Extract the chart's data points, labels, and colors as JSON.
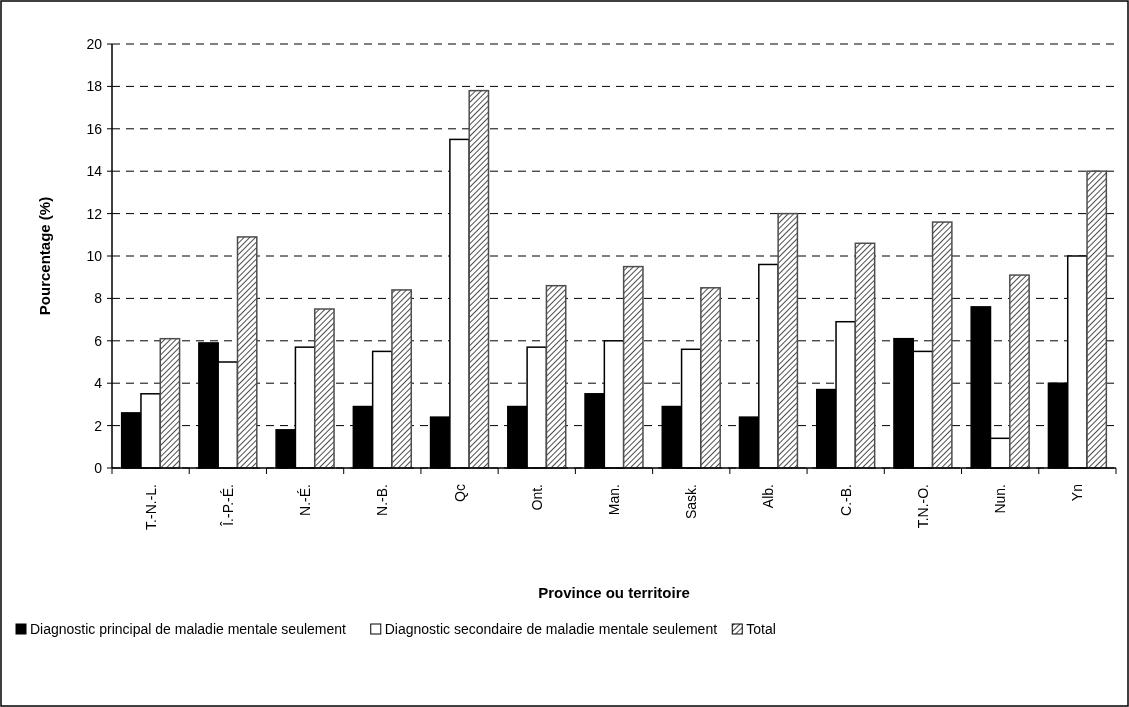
{
  "chart_data": {
    "type": "bar",
    "xlabel": "Province ou territoire",
    "ylabel": "Pourcentage (%)",
    "categories": [
      "T.-N.-L.",
      "Î.-P.-É.",
      "N.-É.",
      "N.-B.",
      "Qc",
      "Ont.",
      "Man.",
      "Sask.",
      "Alb.",
      "C.-B.",
      "T.N.-O.",
      "Nun.",
      "Yn"
    ],
    "series": [
      {
        "name": "Diagnostic principal de maladie mentale seulement",
        "color": "#000000",
        "values": [
          2.6,
          5.9,
          1.8,
          2.9,
          2.4,
          2.9,
          3.5,
          2.9,
          2.4,
          3.7,
          6.1,
          7.6,
          4.0
        ]
      },
      {
        "name": "Diagnostic secondaire de maladie mentale seulement",
        "color": "#ffffff",
        "values": [
          3.5,
          5.0,
          5.7,
          5.5,
          15.5,
          5.7,
          6.0,
          5.6,
          9.6,
          6.9,
          5.5,
          1.4,
          10.0
        ]
      },
      {
        "name": "Total",
        "color": "#4d4d4d",
        "values": [
          6.1,
          10.9,
          7.5,
          8.4,
          17.8,
          8.6,
          9.5,
          8.5,
          12.0,
          10.6,
          11.6,
          9.1,
          14.0
        ]
      }
    ],
    "ylim": [
      0,
      20
    ],
    "yticks": [
      0,
      2,
      4,
      6,
      8,
      10,
      12,
      14,
      16,
      18,
      20
    ],
    "grid": "y",
    "line_style": "dashed",
    "legend": "bottom"
  }
}
